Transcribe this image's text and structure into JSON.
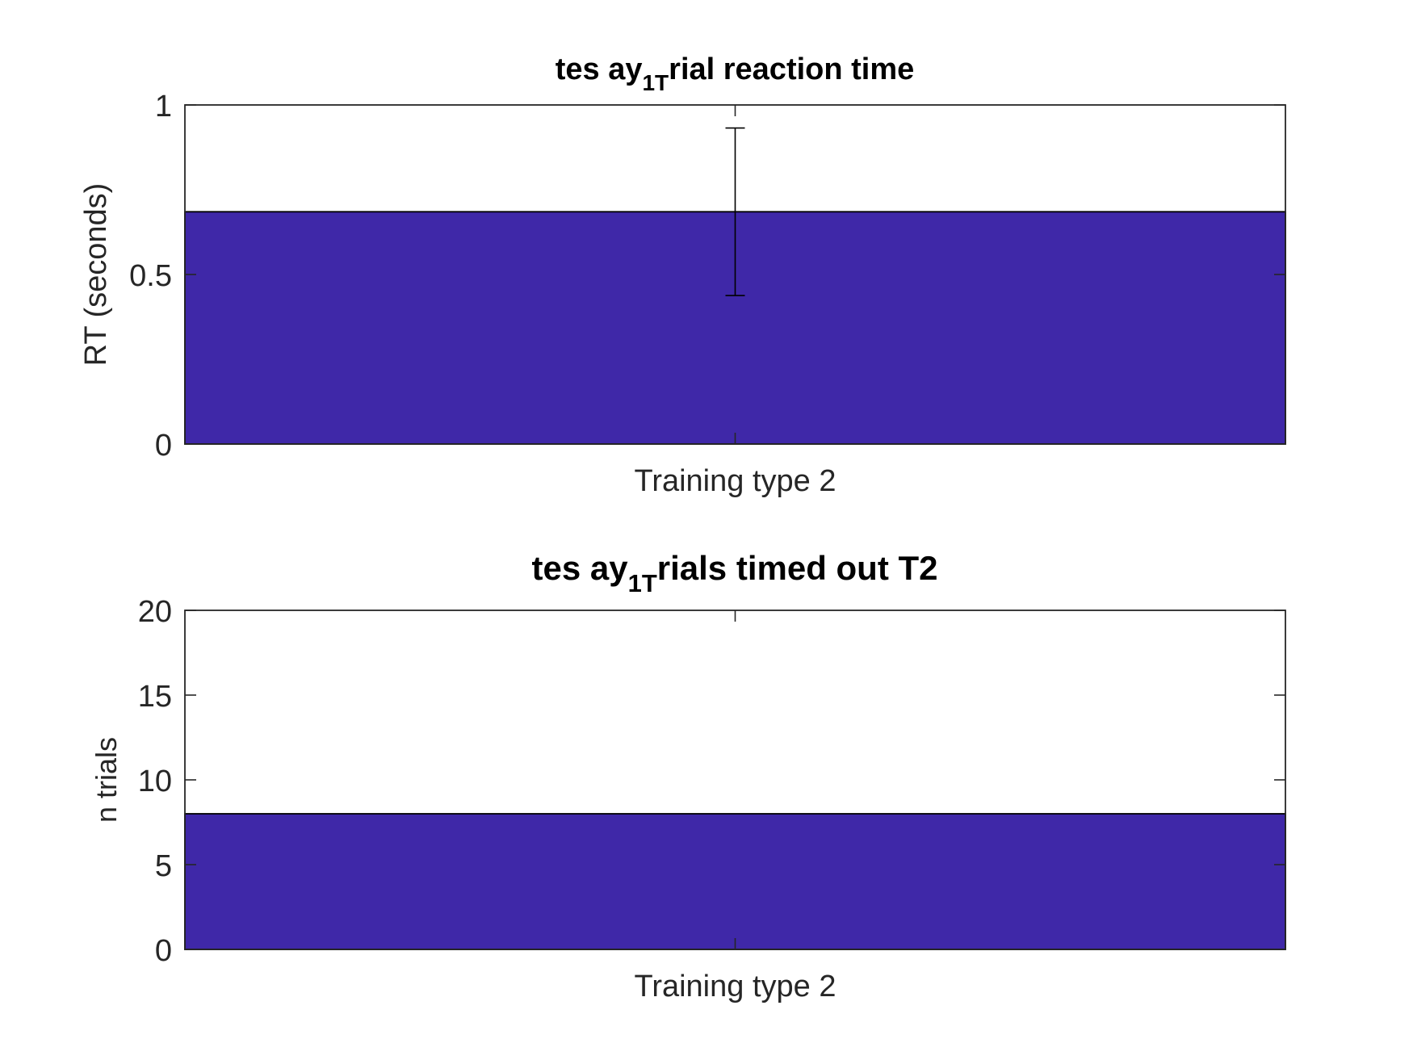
{
  "chart_data": [
    {
      "type": "bar",
      "title": {
        "prefix": "tes ay",
        "subscript": "1T",
        "suffix": "rial reaction time"
      },
      "xlabel": "",
      "ylabel": "RT (seconds)",
      "categories": [
        "Training type 2"
      ],
      "values": [
        0.685
      ],
      "error": [
        0.247
      ],
      "ylim": [
        0,
        1
      ],
      "yticks": [
        0,
        0.5,
        1
      ],
      "ytick_labels": [
        "0",
        "0.5",
        "1"
      ],
      "grid": false,
      "bar_color": "#3f28a8",
      "edge_color": "#000000"
    },
    {
      "type": "bar",
      "title": {
        "prefix": "tes ay",
        "subscript": "1T",
        "suffix": "rials timed out T2"
      },
      "xlabel": "",
      "ylabel": "n trials",
      "categories": [
        "Training type 2"
      ],
      "values": [
        8
      ],
      "ylim": [
        0,
        20
      ],
      "yticks": [
        0,
        5,
        10,
        15,
        20
      ],
      "ytick_labels": [
        "0",
        "5",
        "10",
        "15",
        "20"
      ],
      "grid": false,
      "bar_color": "#3f28a8",
      "edge_color": "#000000"
    }
  ]
}
